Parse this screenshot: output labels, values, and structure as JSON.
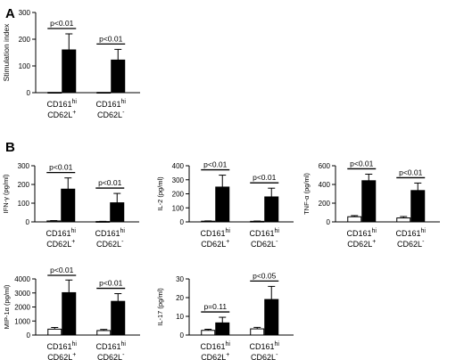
{
  "panel_labels": [
    "A",
    "B"
  ],
  "chart_data": [
    {
      "type": "bar",
      "panel": "A",
      "ylabel": "Stimulation index",
      "ylim": [
        0,
        300
      ],
      "yticks": [
        0,
        100,
        200,
        300
      ],
      "categories": [
        {
          "line1": "CD161",
          "sup1": "hi",
          "line2": "CD62L",
          "sup2": "+"
        },
        {
          "line1": "CD161",
          "sup1": "hi",
          "line2": "CD62L",
          "sup2": "-"
        }
      ],
      "series": [
        {
          "style": "open",
          "values": [
            1,
            1
          ],
          "errors": [
            0,
            0
          ]
        },
        {
          "style": "filled",
          "values": [
            160,
            122
          ],
          "errors": [
            60,
            40
          ]
        }
      ],
      "annotations": [
        "p<0.01",
        "p<0.01"
      ]
    },
    {
      "type": "bar",
      "panel": "B",
      "ylabel": "IFN-γ (pg/ml)",
      "ylim": [
        0,
        300
      ],
      "yticks": [
        0,
        100,
        200,
        300
      ],
      "categories": [
        {
          "line1": "CD161",
          "sup1": "hi",
          "line2": "CD62L",
          "sup2": "+"
        },
        {
          "line1": "CD161",
          "sup1": "hi",
          "line2": "CD62L",
          "sup2": "-"
        }
      ],
      "series": [
        {
          "style": "open",
          "values": [
            5,
            2
          ],
          "errors": [
            2,
            1
          ]
        },
        {
          "style": "filled",
          "values": [
            175,
            102
          ],
          "errors": [
            60,
            50
          ]
        }
      ],
      "annotations": [
        "p<0.01",
        "p<0.01"
      ]
    },
    {
      "type": "bar",
      "panel": "B",
      "ylabel": "IL-2 (pg/ml)",
      "ylim": [
        0,
        400
      ],
      "yticks": [
        0,
        100,
        200,
        300,
        400
      ],
      "categories": [
        {
          "line1": "CD161",
          "sup1": "hi",
          "line2": "CD62L",
          "sup2": "+"
        },
        {
          "line1": "CD161",
          "sup1": "hi",
          "line2": "CD62L",
          "sup2": "-"
        }
      ],
      "series": [
        {
          "style": "open",
          "values": [
            5,
            4
          ],
          "errors": [
            2,
            2
          ]
        },
        {
          "style": "filled",
          "values": [
            248,
            178
          ],
          "errors": [
            85,
            62
          ]
        }
      ],
      "annotations": [
        "p<0.01",
        "p<0.01"
      ]
    },
    {
      "type": "bar",
      "panel": "B",
      "ylabel": "TNF-α (pg/ml)",
      "ylim": [
        0,
        600
      ],
      "yticks": [
        0,
        200,
        400,
        600
      ],
      "categories": [
        {
          "line1": "CD161",
          "sup1": "hi",
          "line2": "CD62L",
          "sup2": "+"
        },
        {
          "line1": "CD161",
          "sup1": "hi",
          "line2": "CD62L",
          "sup2": "-"
        }
      ],
      "series": [
        {
          "style": "open",
          "values": [
            55,
            42
          ],
          "errors": [
            12,
            15
          ]
        },
        {
          "style": "filled",
          "values": [
            440,
            335
          ],
          "errors": [
            70,
            80
          ]
        }
      ],
      "annotations": [
        "p<0.01",
        "p<0.01"
      ]
    },
    {
      "type": "bar",
      "panel": "B",
      "ylabel": "MIP-1α (pg/ml)",
      "ylim": [
        0,
        4000
      ],
      "yticks": [
        0,
        1000,
        2000,
        3000,
        4000
      ],
      "categories": [
        {
          "line1": "CD161",
          "sup1": "hi",
          "line2": "CD62L",
          "sup2": "+"
        },
        {
          "line1": "CD161",
          "sup1": "hi",
          "line2": "CD62L",
          "sup2": "-"
        }
      ],
      "series": [
        {
          "style": "open",
          "values": [
            420,
            320
          ],
          "errors": [
            120,
            80
          ]
        },
        {
          "style": "filled",
          "values": [
            3020,
            2400
          ],
          "errors": [
            900,
            550
          ]
        }
      ],
      "annotations": [
        "p<0.01",
        "p<0.01"
      ]
    },
    {
      "type": "bar",
      "panel": "B",
      "ylabel": "IL-17 (pg/ml)",
      "ylim": [
        0,
        30
      ],
      "yticks": [
        0,
        10,
        20,
        30
      ],
      "categories": [
        {
          "line1": "CD161",
          "sup1": "hi",
          "line2": "CD62L",
          "sup2": "+"
        },
        {
          "line1": "CD161",
          "sup1": "hi",
          "line2": "CD62L",
          "sup2": "-"
        }
      ],
      "series": [
        {
          "style": "open",
          "values": [
            2.5,
            3.3
          ],
          "errors": [
            0.6,
            0.8
          ]
        },
        {
          "style": "filled",
          "values": [
            6.5,
            19
          ],
          "errors": [
            3,
            7
          ]
        }
      ],
      "annotations": [
        "p=0.11",
        "p<0.05"
      ]
    }
  ]
}
